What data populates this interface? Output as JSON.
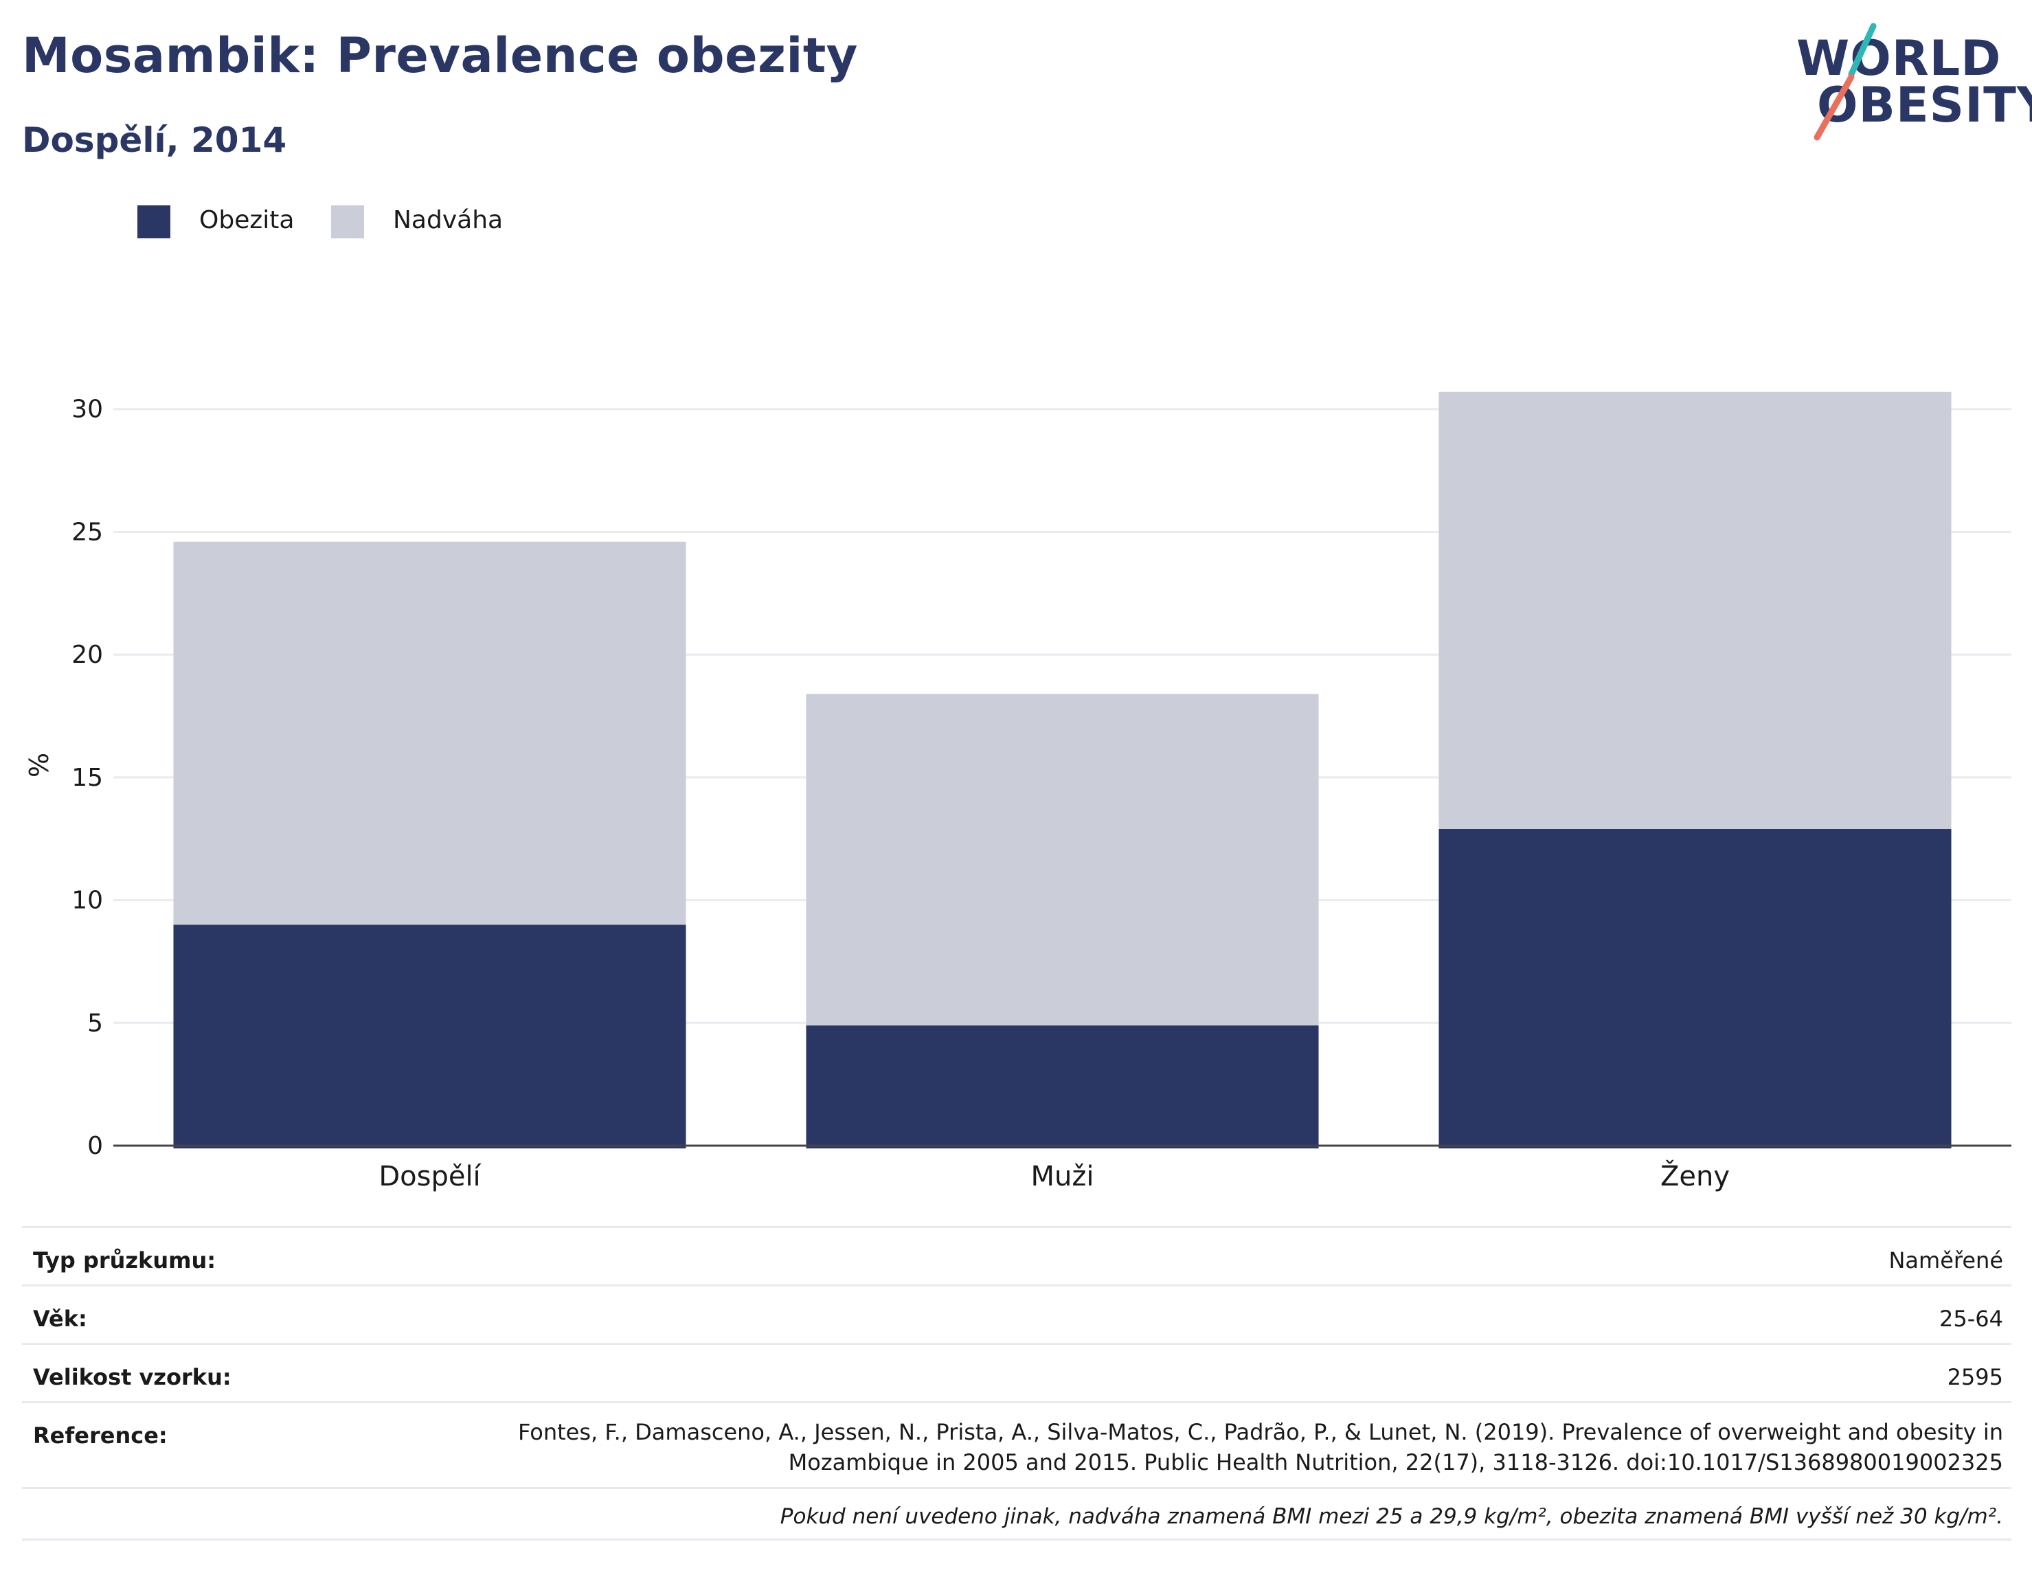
{
  "header": {
    "title": "Mosambik: Prevalence obezity",
    "subtitle": "Dospělí, 2014"
  },
  "logo": {
    "line1": "WORLD",
    "line2": "OBESITY",
    "accent_colors": [
      "#2fb7b6",
      "#e8705c"
    ]
  },
  "colors": {
    "obesity": "#2a3664",
    "overweight": "#cbcdd8",
    "title": "#2a3664"
  },
  "chart_data": {
    "type": "bar",
    "stacked": true,
    "categories": [
      "Dospělí",
      "Muži",
      "Ženy"
    ],
    "series": [
      {
        "name": "Obezita",
        "values": [
          9.0,
          4.9,
          12.9
        ]
      },
      {
        "name": "Nadváha",
        "values": [
          15.6,
          13.5,
          17.8
        ]
      }
    ],
    "totals": [
      24.6,
      18.4,
      30.7
    ],
    "ylabel": "%",
    "xlabel": "",
    "ylim": [
      0,
      31
    ],
    "yticks": [
      0,
      5,
      10,
      15,
      20,
      25,
      30
    ],
    "grid": true,
    "legend_position": "top-left"
  },
  "info": {
    "rows": [
      {
        "label": "Typ průzkumu:",
        "value": "Naměřené"
      },
      {
        "label": "Věk:",
        "value": "25-64"
      },
      {
        "label": "Velikost vzorku:",
        "value": "2595"
      },
      {
        "label": "Reference:",
        "value_lines": [
          "Fontes, F., Damasceno, A., Jessen, N., Prista, A., Silva-Matos, C., Padrão, P., & Lunet, N. (2019). Prevalence of overweight and obesity in",
          "Mozambique in 2005 and 2015. Public Health Nutrition, 22(17), 3118-3126. doi:10.1017/S1368980019002325"
        ]
      }
    ],
    "footnote": "Pokud není uvedeno jinak, nadváha znamená BMI mezi 25 a 29,9 kg/m², obezita znamená BMI vyšší než 30 kg/m²."
  }
}
